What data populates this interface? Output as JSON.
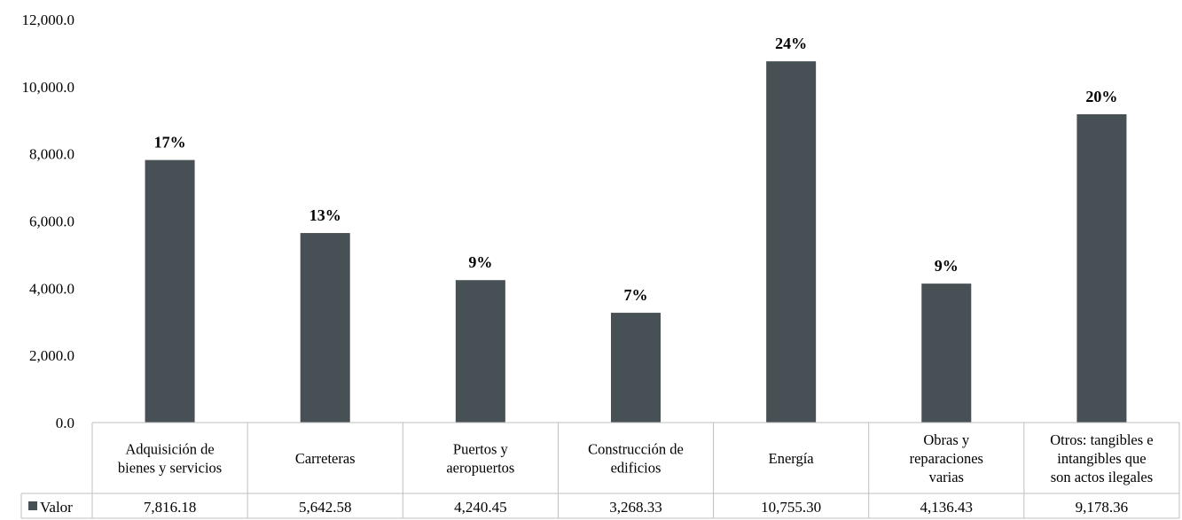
{
  "chart_data": {
    "type": "bar",
    "categories": [
      [
        "Adquisición de",
        "bienes y servicios"
      ],
      [
        "Carreteras"
      ],
      [
        "Puertos y",
        "aeropuertos"
      ],
      [
        "Construcción de",
        "edificios"
      ],
      [
        "Energía"
      ],
      [
        "Obras y",
        "reparaciones",
        "varias"
      ],
      [
        "Otros: tangibles e",
        "intangibles que",
        "son actos ilegales"
      ]
    ],
    "series": [
      {
        "name": "Valor",
        "values": [
          7816.18,
          5642.58,
          4240.45,
          3268.33,
          10755.3,
          4136.43,
          9178.36
        ],
        "value_labels": [
          "7,816.18",
          "5,642.58",
          "4,240.45",
          "3,268.33",
          "10,755.30",
          "4,136.43",
          "9,178.36"
        ],
        "percent_labels": [
          "17%",
          "13%",
          "9%",
          "7%",
          "24%",
          "9%",
          "20%"
        ],
        "color": "#475054"
      }
    ],
    "ylim": [
      0,
      12000
    ],
    "yticks": [
      0,
      2000,
      4000,
      6000,
      8000,
      10000,
      12000
    ],
    "ytick_labels": [
      "0.0",
      "2,000.0",
      "4,000.0",
      "6,000.0",
      "8,000.0",
      "10,000.0",
      "12,000.0"
    ],
    "grid": false,
    "legend": "data-table-left",
    "data_table": true
  }
}
